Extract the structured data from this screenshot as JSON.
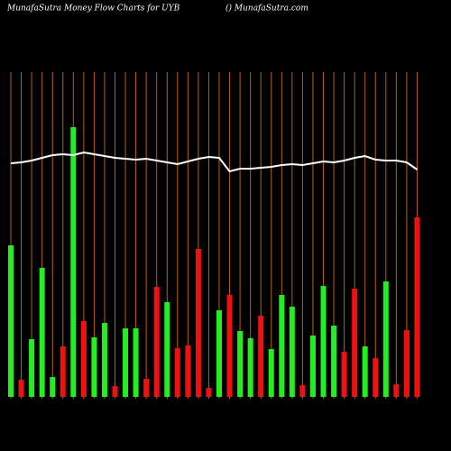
{
  "chart_data": {
    "type": "bar",
    "title": "MunafaSutra  Money Flow  Charts for UYB",
    "subtitle": "() MunafaSutra.com",
    "background": "#000000",
    "guide_color": "#b8620f",
    "ylim": [
      0,
      360
    ],
    "values": [
      168,
      19,
      64,
      143,
      22,
      56,
      299,
      84,
      66,
      82,
      12,
      76,
      76,
      20,
      122,
      105,
      54,
      57,
      164,
      10,
      96,
      113,
      73,
      65,
      90,
      53,
      113,
      100,
      13,
      68,
      123,
      79,
      50,
      120,
      56,
      43,
      128,
      14,
      74,
      199
    ],
    "bar_colors": [
      "#22ee22",
      "#ee1111",
      "#22ee22",
      "#22ee22",
      "#22ee22",
      "#ee1111",
      "#22ee22",
      "#ee1111",
      "#22ee22",
      "#22ee22",
      "#ee1111",
      "#22ee22",
      "#22ee22",
      "#ee1111",
      "#ee1111",
      "#22ee22",
      "#ee1111",
      "#ee1111",
      "#ee1111",
      "#ee1111",
      "#22ee22",
      "#ee1111",
      "#22ee22",
      "#22ee22",
      "#ee1111",
      "#22ee22",
      "#22ee22",
      "#22ee22",
      "#ee1111",
      "#22ee22",
      "#22ee22",
      "#22ee22",
      "#ee1111",
      "#ee1111",
      "#22ee22",
      "#ee1111",
      "#22ee22",
      "#ee1111",
      "#ee1111",
      "#ee1111"
    ],
    "line": {
      "color": "#ffffff",
      "values": [
        259,
        260,
        262,
        265,
        268,
        269,
        268,
        271,
        269,
        267,
        265,
        264,
        263,
        264,
        262,
        260,
        258,
        261,
        264,
        266,
        265,
        250,
        253,
        253,
        254,
        255,
        257,
        258,
        257,
        259,
        261,
        260,
        262,
        265,
        267,
        263,
        262,
        262,
        260,
        252
      ]
    }
  }
}
